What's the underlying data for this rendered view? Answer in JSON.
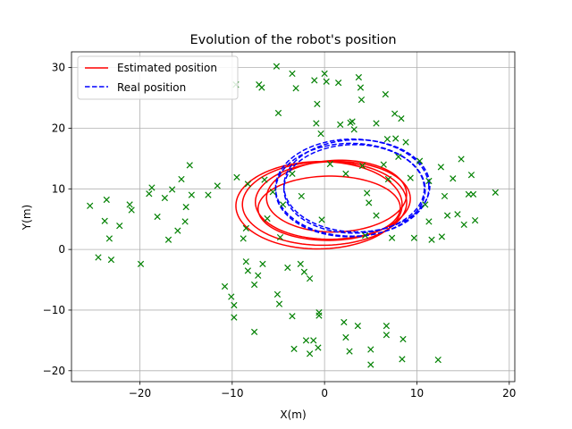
{
  "chart_data": {
    "type": "scatter",
    "title": "Evolution of the robot's position",
    "xlabel": "X(m)",
    "ylabel": "Y(m)",
    "xlim": [
      -27.4,
      20.6
    ],
    "ylim": [
      -21.8,
      32.6
    ],
    "xticks": [
      -20,
      -10,
      0,
      10,
      20
    ],
    "yticks": [
      -20,
      -10,
      0,
      10,
      20,
      30
    ],
    "grid": true,
    "legend_position": "top-left",
    "legend": [
      {
        "label": "Estimated position",
        "color": "#ff0000",
        "style": "solid"
      },
      {
        "label": "Real position",
        "color": "#0000ff",
        "style": "dashed"
      }
    ],
    "series": [
      {
        "name": "Estimated position",
        "kind": "loops",
        "color": "#ff0000",
        "loops": [
          {
            "cx": 0.9,
            "cy": 8.1,
            "rx": 8.4,
            "ry": 6.4,
            "rot": 0.08
          },
          {
            "cx": 0.0,
            "cy": 7.6,
            "rx": 8.9,
            "ry": 6.9,
            "rot": 0.05
          },
          {
            "cx": -0.6,
            "cy": 7.3,
            "rx": 9.0,
            "ry": 7.2,
            "rot": 0.03
          },
          {
            "cx": 1.3,
            "cy": 8.8,
            "rx": 7.6,
            "ry": 5.9,
            "rot": 0.1
          },
          {
            "cx": 0.5,
            "cy": 6.8,
            "rx": 7.7,
            "ry": 5.3,
            "rot": 0.02
          }
        ]
      },
      {
        "name": "Real position",
        "kind": "loops",
        "color": "#0000ff",
        "loops": [
          {
            "cx": 3.0,
            "cy": 10.2,
            "rx": 8.3,
            "ry": 8.0,
            "rot": 0.06
          },
          {
            "cx": 3.2,
            "cy": 10.0,
            "rx": 7.6,
            "ry": 7.3,
            "rot": 0.05
          },
          {
            "cx": 3.5,
            "cy": 10.5,
            "rx": 7.9,
            "ry": 7.6,
            "rot": 0.04
          },
          {
            "cx": 2.8,
            "cy": 9.8,
            "rx": 8.1,
            "ry": 7.7,
            "rot": 0.07
          }
        ]
      },
      {
        "kind": "landmarks",
        "marker": "x",
        "color": "#008000",
        "points": [
          [
            -25.4,
            7.2
          ],
          [
            -24.5,
            -1.3
          ],
          [
            -23.8,
            4.7
          ],
          [
            -23.6,
            8.2
          ],
          [
            -23.3,
            1.8
          ],
          [
            -23.1,
            -1.7
          ],
          [
            -22.2,
            3.9
          ],
          [
            -21.1,
            7.4
          ],
          [
            -20.9,
            6.5
          ],
          [
            -19.9,
            -2.4
          ],
          [
            -19.0,
            9.2
          ],
          [
            -18.7,
            10.2
          ],
          [
            -18.1,
            5.4
          ],
          [
            -17.3,
            8.5
          ],
          [
            -16.9,
            1.6
          ],
          [
            -16.5,
            9.9
          ],
          [
            -15.9,
            3.1
          ],
          [
            -15.5,
            11.6
          ],
          [
            -15.1,
            4.6
          ],
          [
            -15.0,
            7.0
          ],
          [
            -14.6,
            13.9
          ],
          [
            -14.4,
            9.0
          ],
          [
            -12.6,
            9.0
          ],
          [
            -11.6,
            10.5
          ],
          [
            -10.8,
            -6.1
          ],
          [
            -10.1,
            -7.8
          ],
          [
            -9.8,
            -9.2
          ],
          [
            -9.8,
            -11.2
          ],
          [
            -9.6,
            27.2
          ],
          [
            -9.5,
            11.9
          ],
          [
            -8.8,
            1.8
          ],
          [
            -8.5,
            3.5
          ],
          [
            -8.5,
            -2.0
          ],
          [
            -8.3,
            -3.5
          ],
          [
            -8.3,
            10.8
          ],
          [
            -7.6,
            -5.8
          ],
          [
            -7.6,
            -13.6
          ],
          [
            -7.2,
            -4.3
          ],
          [
            -7.1,
            27.2
          ],
          [
            -6.8,
            26.7
          ],
          [
            -6.7,
            -2.4
          ],
          [
            -6.5,
            11.5
          ],
          [
            -6.2,
            5.1
          ],
          [
            -5.6,
            9.5
          ],
          [
            -5.2,
            30.2
          ],
          [
            -5.1,
            -7.4
          ],
          [
            -5.0,
            22.5
          ],
          [
            -4.9,
            -9.0
          ],
          [
            -4.8,
            2.0
          ],
          [
            -4.5,
            7.4
          ],
          [
            -4.0,
            -3.0
          ],
          [
            -3.5,
            -11.0
          ],
          [
            -3.5,
            12.5
          ],
          [
            -3.5,
            29.0
          ],
          [
            -3.3,
            -16.4
          ],
          [
            -3.1,
            26.6
          ],
          [
            -2.6,
            -2.4
          ],
          [
            -2.5,
            8.8
          ],
          [
            -2.2,
            -3.7
          ],
          [
            -2.0,
            -15.0
          ],
          [
            -1.6,
            -17.2
          ],
          [
            -1.6,
            -4.8
          ],
          [
            -1.2,
            -15.0
          ],
          [
            -1.1,
            27.9
          ],
          [
            -0.9,
            20.8
          ],
          [
            -0.8,
            24.0
          ],
          [
            -0.7,
            -16.2
          ],
          [
            -0.6,
            -10.4
          ],
          [
            -0.6,
            -10.9
          ],
          [
            -0.4,
            19.1
          ],
          [
            -0.3,
            4.9
          ],
          [
            0.0,
            29.0
          ],
          [
            0.2,
            27.7
          ],
          [
            0.6,
            14.1
          ],
          [
            1.5,
            27.5
          ],
          [
            1.7,
            20.6
          ],
          [
            2.1,
            -12.0
          ],
          [
            2.3,
            -14.5
          ],
          [
            2.3,
            12.5
          ],
          [
            2.7,
            -16.8
          ],
          [
            2.8,
            20.9
          ],
          [
            3.0,
            21.1
          ],
          [
            3.2,
            19.8
          ],
          [
            3.6,
            -12.6
          ],
          [
            3.7,
            28.4
          ],
          [
            3.9,
            26.7
          ],
          [
            4.0,
            24.7
          ],
          [
            4.1,
            13.8
          ],
          [
            4.4,
            2.3
          ],
          [
            4.6,
            9.3
          ],
          [
            4.8,
            7.7
          ],
          [
            5.0,
            -19.0
          ],
          [
            5.0,
            -16.5
          ],
          [
            5.6,
            5.6
          ],
          [
            5.6,
            20.8
          ],
          [
            6.4,
            14.0
          ],
          [
            6.6,
            25.6
          ],
          [
            6.7,
            -12.6
          ],
          [
            6.7,
            -14.1
          ],
          [
            6.8,
            18.2
          ],
          [
            6.9,
            11.6
          ],
          [
            7.3,
            1.9
          ],
          [
            7.6,
            22.4
          ],
          [
            7.7,
            18.3
          ],
          [
            8.0,
            15.3
          ],
          [
            8.3,
            21.6
          ],
          [
            8.4,
            -18.1
          ],
          [
            8.5,
            -14.8
          ],
          [
            8.8,
            17.7
          ],
          [
            9.3,
            11.8
          ],
          [
            9.7,
            1.9
          ],
          [
            10.3,
            14.6
          ],
          [
            10.9,
            7.4
          ],
          [
            11.3,
            4.6
          ],
          [
            11.3,
            11.3
          ],
          [
            11.6,
            1.6
          ],
          [
            12.3,
            -18.2
          ],
          [
            12.6,
            13.6
          ],
          [
            12.7,
            2.1
          ],
          [
            13.0,
            8.8
          ],
          [
            13.3,
            5.6
          ],
          [
            13.9,
            11.7
          ],
          [
            14.4,
            5.8
          ],
          [
            14.8,
            14.9
          ],
          [
            15.1,
            4.1
          ],
          [
            15.6,
            9.1
          ],
          [
            15.9,
            12.3
          ],
          [
            16.1,
            9.1
          ],
          [
            16.3,
            4.8
          ],
          [
            18.5,
            9.4
          ]
        ]
      }
    ]
  }
}
